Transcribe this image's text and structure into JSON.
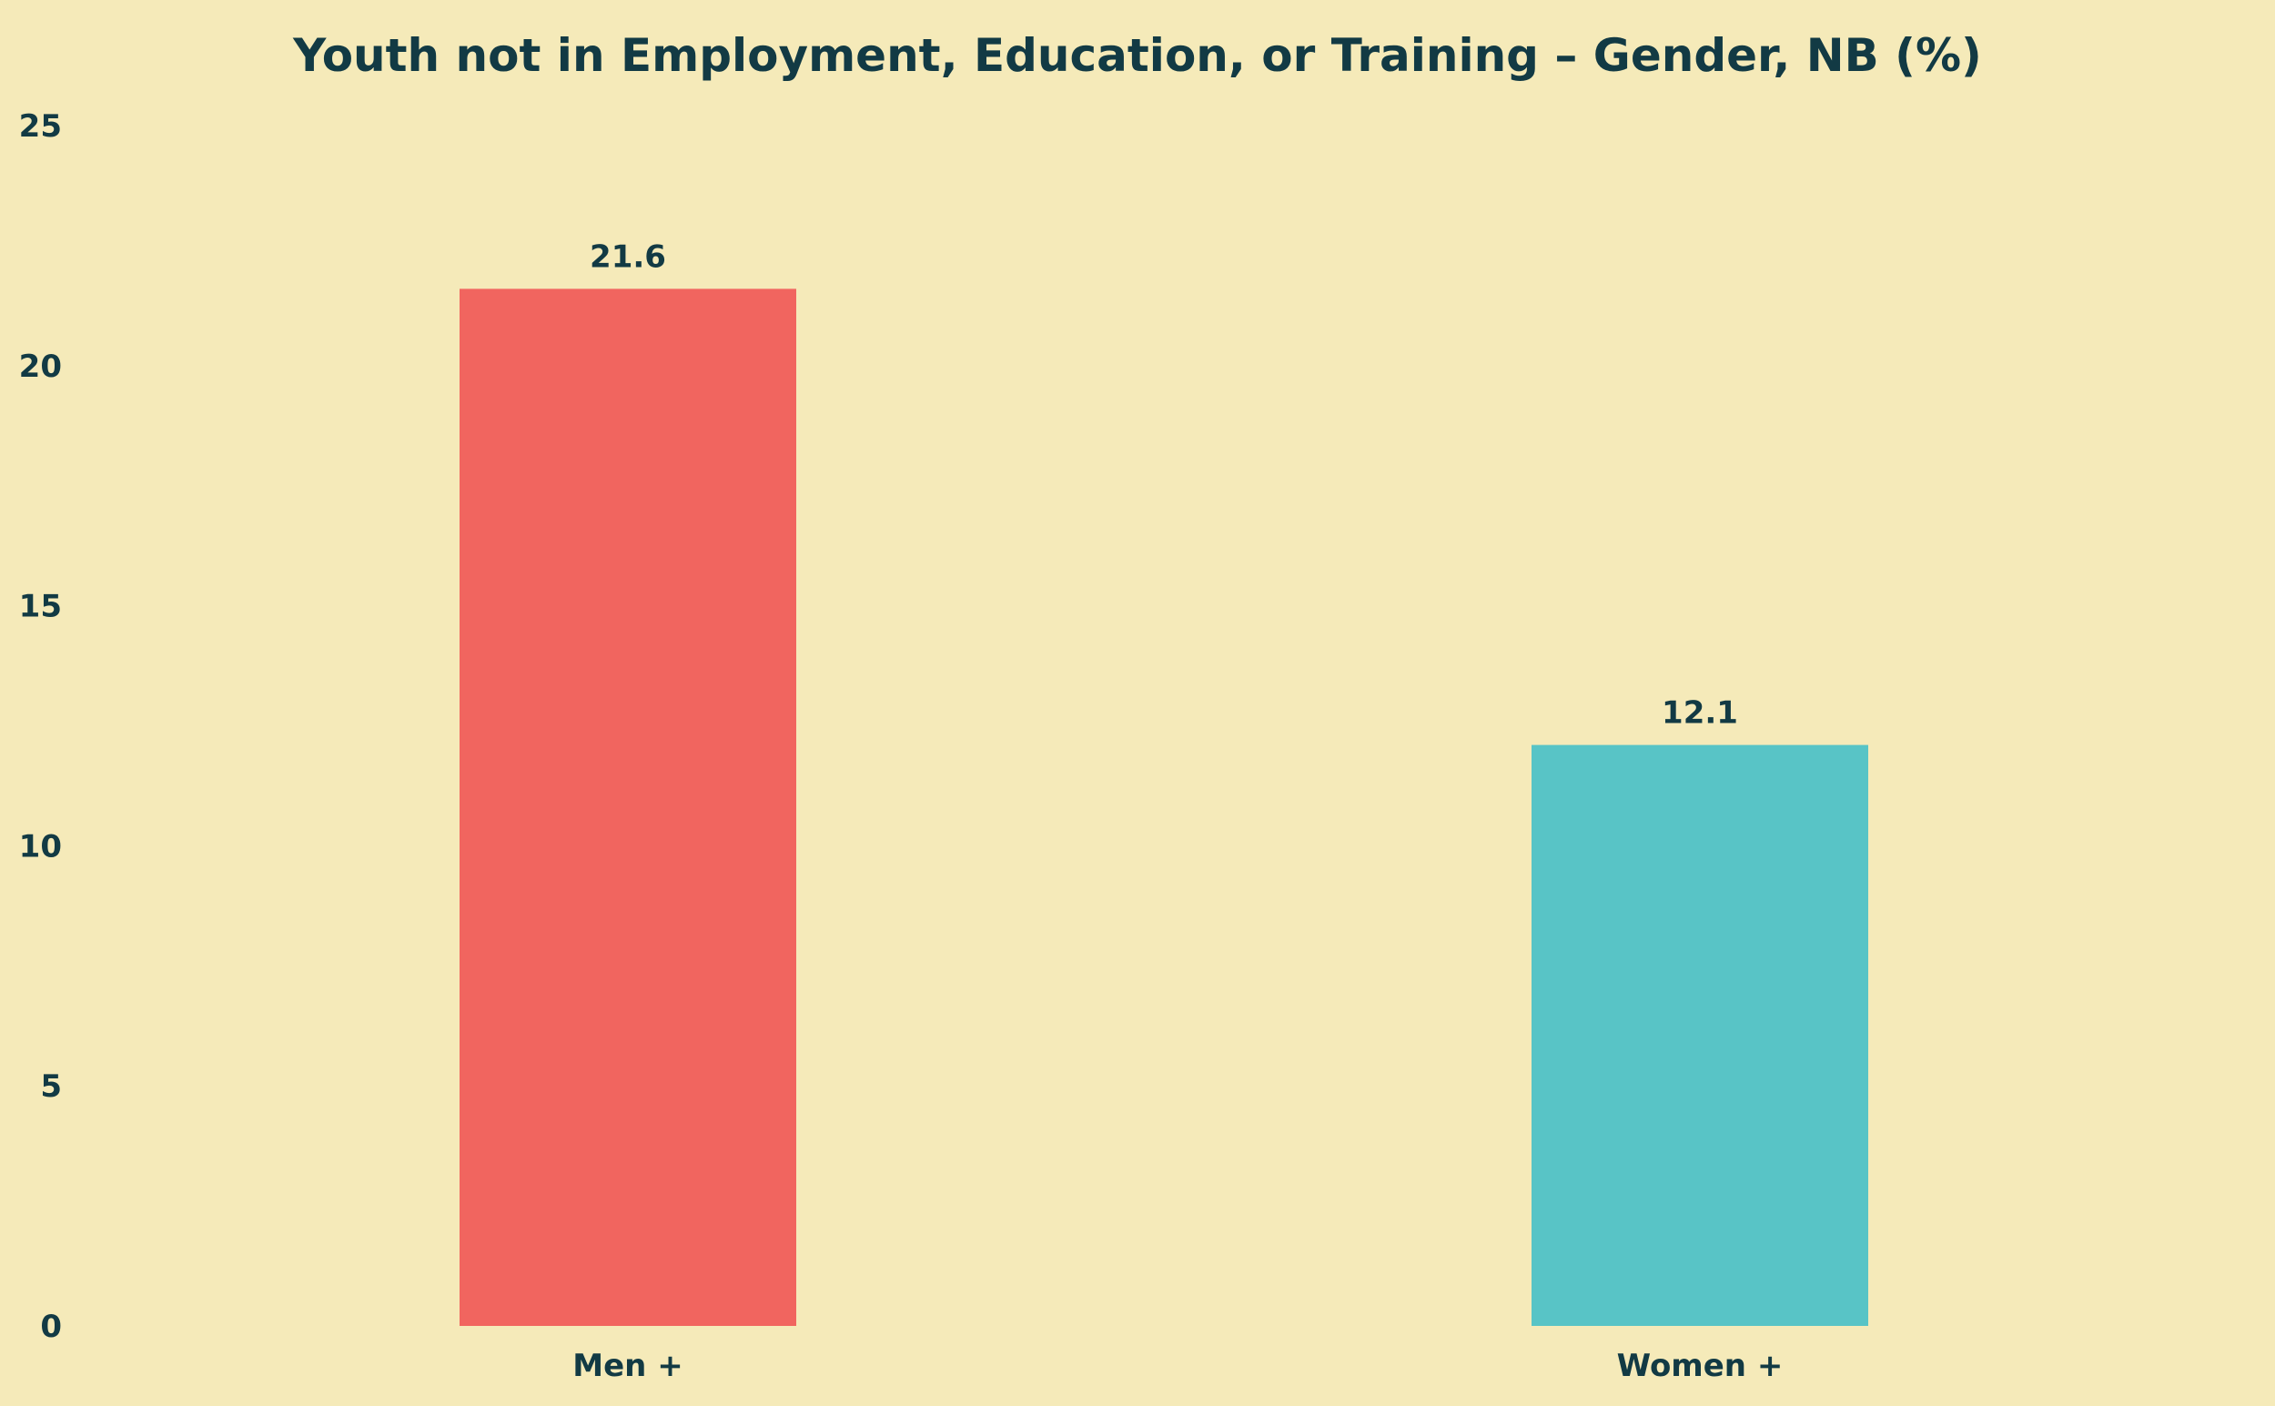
{
  "colors": {
    "background": "#f5eab9",
    "text": "#123a44"
  },
  "chart_data": {
    "type": "bar",
    "title": "Youth not in Employment, Education, or Training – Gender, NB (%)",
    "xlabel": "",
    "ylabel": "",
    "categories": [
      "Men +",
      "Women +"
    ],
    "values": [
      21.6,
      12.1
    ],
    "value_labels": [
      "21.6",
      "12.1"
    ],
    "bar_colors": [
      "#f1655f",
      "#58c4c6"
    ],
    "ylim": [
      0,
      25
    ],
    "yticks": [
      0,
      5,
      10,
      15,
      20,
      25
    ],
    "grid": false,
    "legend": "none"
  }
}
